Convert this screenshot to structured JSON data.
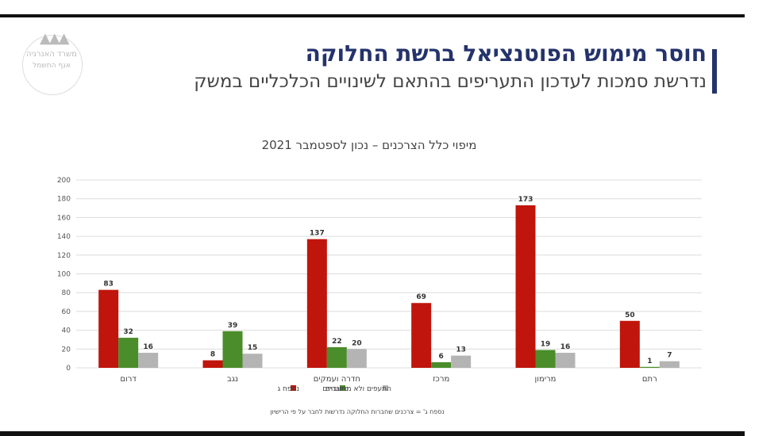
{
  "header": {
    "title": "חוסר מימוש הפוטנציאל ברשת החלוקה",
    "subtitle": "נדרשת סמכות לעדכון התעריפים בהתאם לשינויים הכלכליים במשק"
  },
  "logo": {
    "line1": "משרד האנרגיה",
    "line2": "אגף החשמל"
  },
  "footnote": "נספח ג' = צרכנים שחברות החלוקה נדרשות לחבר על פי הרישיון",
  "colors": {
    "title": "#24336b",
    "red": "#c0150c",
    "green": "#4a8d2a",
    "gray": "#b4b4b4",
    "grid": "#dcdcdc"
  },
  "chart_data": {
    "type": "bar",
    "title": "מיפוי כלל הצרכנים – נכון לספטמבר 2021",
    "categories": [
      "דרום",
      "נגב",
      "חדרה ועמקים",
      "מרכז",
      "מרימון",
      "רתם"
    ],
    "series": [
      {
        "name": "נספח ג",
        "color": "#c0150c",
        "values": [
          83,
          8,
          137,
          69,
          173,
          50
        ]
      },
      {
        "name": "מחוברים",
        "color": "#4a8d2a",
        "values": [
          32,
          39,
          22,
          6,
          19,
          1
        ]
      },
      {
        "name": "התעפים ולא מחוברים",
        "color": "#b4b4b4",
        "values": [
          16,
          15,
          20,
          13,
          16,
          7
        ]
      }
    ],
    "ylim": [
      0,
      200
    ],
    "yticks": [
      0,
      20,
      40,
      60,
      80,
      100,
      120,
      140,
      160,
      180,
      200
    ],
    "grid": true,
    "legend": "bottom-center"
  }
}
